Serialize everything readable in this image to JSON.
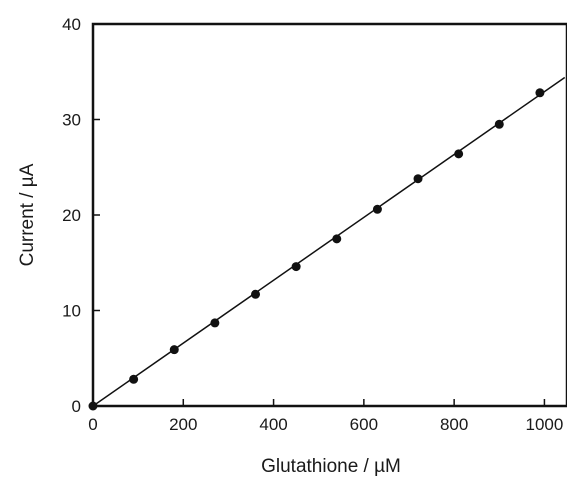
{
  "chart_data": {
    "type": "scatter",
    "xlabel": "Glutathione / µM",
    "ylabel": "Current / µA",
    "xlim": [
      0,
      1050
    ],
    "ylim": [
      0,
      40
    ],
    "x_ticks": [
      0,
      200,
      400,
      600,
      800,
      1000
    ],
    "x_tick_labels": [
      "0",
      "200",
      "400",
      "600",
      "800",
      "1000"
    ],
    "y_ticks": [
      0,
      10,
      20,
      30,
      40
    ],
    "y_tick_labels": [
      "0",
      "10",
      "20",
      "30",
      "40"
    ],
    "grid": false,
    "legend": "none",
    "series": [
      {
        "x": [
          0,
          90,
          180,
          270,
          360,
          450,
          540,
          630,
          720,
          810,
          900,
          990
        ],
        "y": [
          0,
          2.8,
          5.9,
          8.7,
          11.7,
          14.6,
          17.5,
          20.6,
          23.8,
          26.4,
          29.5,
          32.8
        ],
        "marker": "filled-circle",
        "color": "#111111"
      }
    ],
    "fit_line": {
      "x": [
        0,
        1045
      ],
      "y": [
        0,
        34.4
      ],
      "color": "#111111"
    }
  }
}
